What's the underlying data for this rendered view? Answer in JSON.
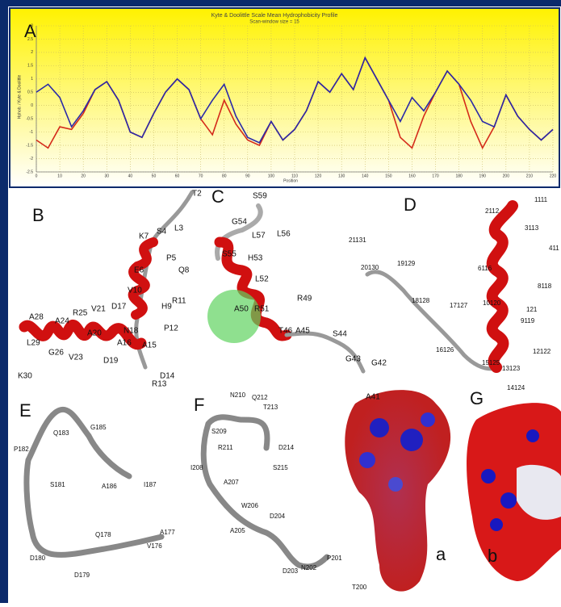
{
  "chart_data": {
    "type": "line",
    "title": "Kyte & Doolittle Scale Mean Hydrophobicity Profile",
    "subtitle": "Scan-window size = 15",
    "xlabel": "Position",
    "ylabel": "Hphob. / Kyte & Doolittle",
    "annotations": [
      "A"
    ],
    "x": [
      0,
      5,
      10,
      15,
      20,
      25,
      30,
      35,
      40,
      45,
      50,
      55,
      60,
      65,
      70,
      75,
      80,
      85,
      90,
      95,
      100,
      105,
      110,
      115,
      120,
      125,
      130,
      135,
      140,
      145,
      150,
      155,
      160,
      165,
      170,
      175,
      180,
      185,
      190,
      195,
      200,
      205,
      210,
      215,
      220
    ],
    "series": [
      {
        "color": "#d42a1a",
        "values": [
          -1.3,
          -1.6,
          -0.8,
          -0.9,
          -0.3,
          0.6,
          0.9,
          0.2,
          -1.0,
          -1.2,
          -0.3,
          0.5,
          1.0,
          0.6,
          -0.5,
          -1.1,
          0.2,
          -0.7,
          -1.3,
          -1.5,
          -0.6,
          -1.3,
          -0.9,
          -0.2,
          0.9,
          0.5,
          1.2,
          0.6,
          1.8,
          1.0,
          0.2,
          -1.2,
          -1.6,
          -0.4,
          0.5,
          1.3,
          0.8,
          -0.6,
          -1.6,
          -0.8,
          0.4,
          -0.4,
          -0.9,
          -1.3,
          -0.9
        ]
      },
      {
        "color": "#2a2aa8",
        "values": [
          0.5,
          0.8,
          0.3,
          -0.8,
          -0.2,
          0.6,
          0.9,
          0.2,
          -1.0,
          -1.2,
          -0.3,
          0.5,
          1.0,
          0.6,
          -0.5,
          0.2,
          0.8,
          -0.4,
          -1.2,
          -1.4,
          -0.6,
          -1.3,
          -0.9,
          -0.2,
          0.9,
          0.5,
          1.2,
          0.6,
          1.8,
          1.0,
          0.2,
          -0.6,
          0.3,
          -0.2,
          0.5,
          1.3,
          0.8,
          0.2,
          -0.6,
          -0.8,
          0.4,
          -0.4,
          -0.9,
          -1.3,
          -0.9
        ]
      }
    ],
    "xlim": [
      0,
      220
    ],
    "xticks": [
      0,
      10,
      20,
      30,
      40,
      50,
      60,
      70,
      80,
      90,
      100,
      110,
      120,
      130,
      140,
      150,
      160,
      170,
      180,
      190,
      200,
      210,
      220
    ],
    "ylim": [
      -2.5,
      3
    ],
    "yticks": [
      -2.5,
      -2,
      -1.5,
      -1,
      -0.5,
      0,
      0.5,
      1,
      1.5,
      2,
      2.5,
      3
    ],
    "grid": true
  },
  "panels": {
    "B": {
      "letter": "B",
      "labels": [
        "T2",
        "S4",
        "L3",
        "K7",
        "P5",
        "E6",
        "Q8",
        "V10",
        "R11",
        "H9",
        "D17",
        "V21",
        "R25",
        "A24",
        "A28",
        "A20",
        "P12",
        "N18",
        "A16",
        "A15",
        "L29",
        "G26",
        "V23",
        "D19",
        "D14",
        "R13",
        "K30"
      ]
    },
    "C": {
      "letter": "C",
      "labels": [
        "S59",
        "G54",
        "L57",
        "L56",
        "S55",
        "H53",
        "L52",
        "R49",
        "A50",
        "R51",
        "T46",
        "A45",
        "S44",
        "G43",
        "G42"
      ]
    },
    "D": {
      "letter": "D",
      "labels": [
        "2112",
        "1111",
        "3113",
        "21131",
        "411",
        "20130",
        "19129",
        "6116",
        "8118",
        "18128",
        "17127",
        "10120",
        "121",
        "9119",
        "12122",
        "16126",
        "15125",
        "13123",
        "14124"
      ]
    },
    "E": {
      "letter": "E",
      "labels": [
        "G185",
        "Q183",
        "P182",
        "S181",
        "A186",
        "I187",
        "Q178",
        "A177",
        "V176",
        "D180",
        "D179"
      ]
    },
    "F": {
      "letter": "F",
      "labels": [
        "N210",
        "Q212",
        "T213",
        "S209",
        "R211",
        "D214",
        "I208",
        "S215",
        "A207",
        "W206",
        "D204",
        "A205",
        "P201",
        "N202",
        "D203",
        "T200"
      ]
    },
    "G": {
      "letter": "G",
      "labels": [
        "A41",
        "a",
        "b"
      ]
    }
  }
}
